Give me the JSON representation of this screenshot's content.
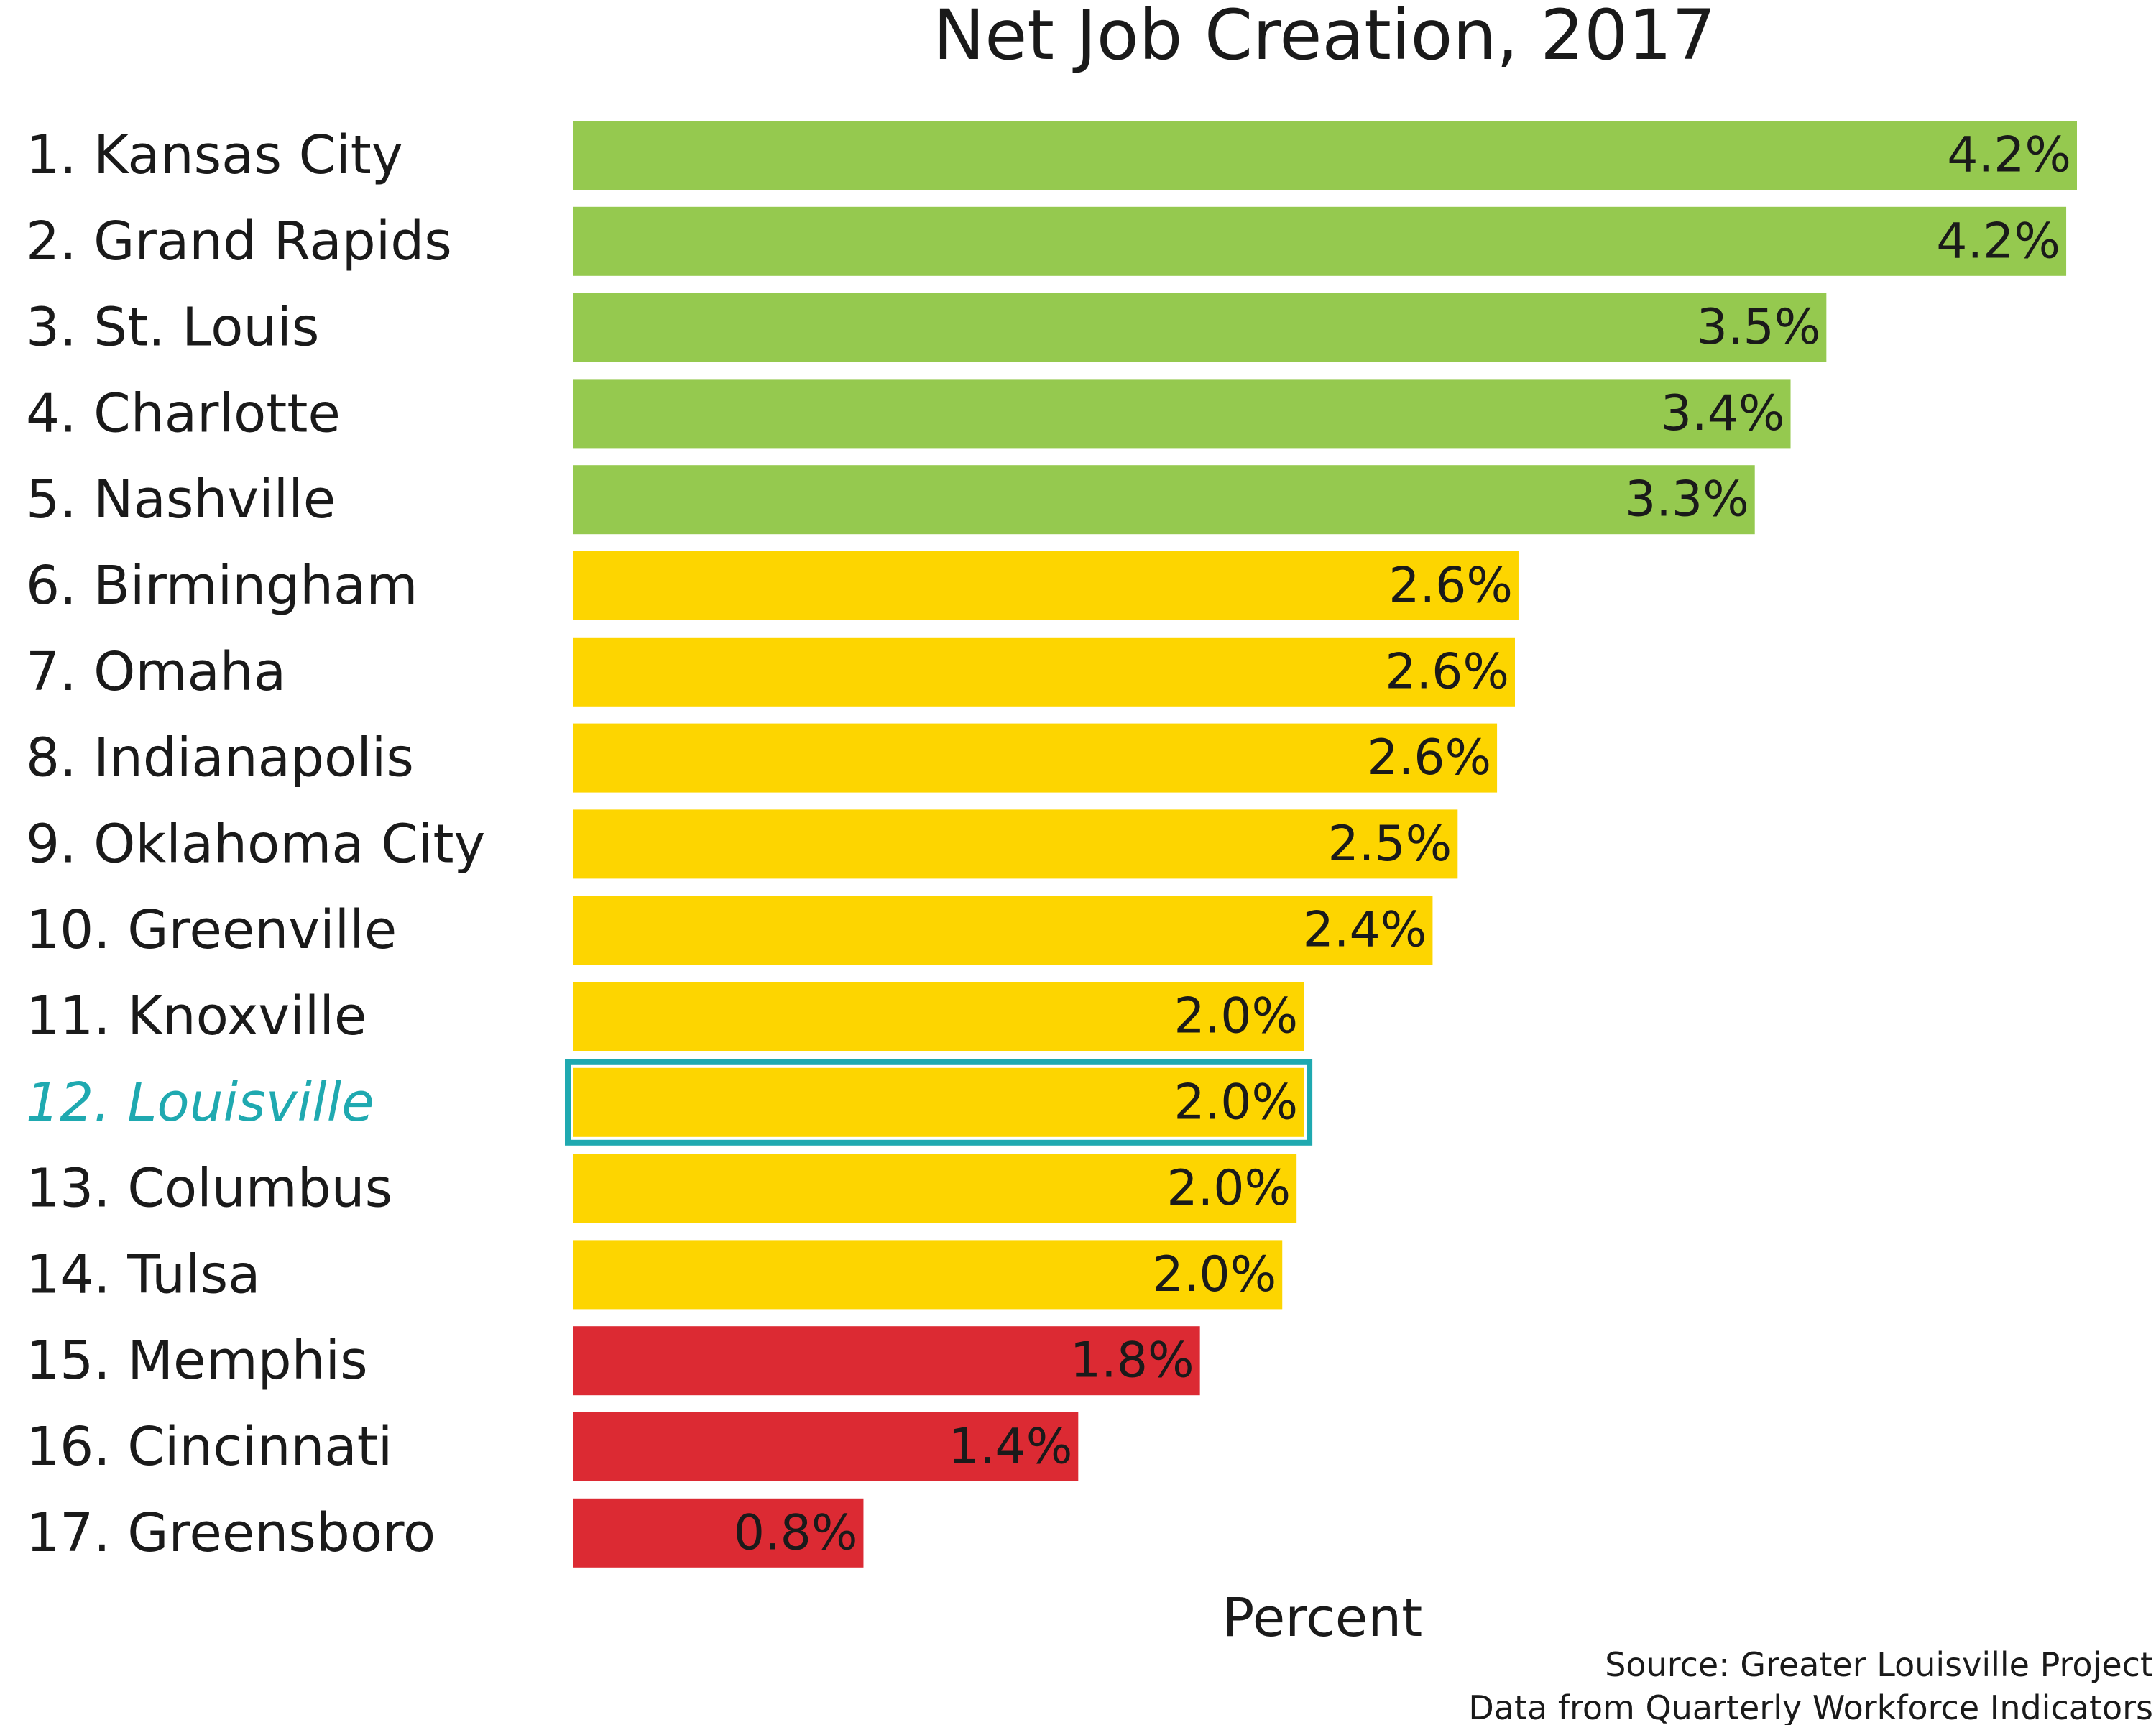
{
  "chart_data": {
    "type": "bar",
    "orientation": "horizontal",
    "title": "Net Job Creation, 2017",
    "xlabel": "Percent",
    "ylabel": "",
    "xlim": [
      0,
      4.2
    ],
    "grid": false,
    "legend": "none",
    "highlight_index": 11,
    "categories": [
      "1. Kansas City",
      "2. Grand Rapids",
      "3. St. Louis",
      "4. Charlotte",
      "5. Nashville",
      "6. Birmingham",
      "7. Omaha",
      "8. Indianapolis",
      "9. Oklahoma City",
      "10. Greenville",
      "11. Knoxville",
      "12. Louisville",
      "13. Columbus",
      "14. Tulsa",
      "15. Memphis",
      "16. Cincinnati",
      "17. Greensboro"
    ],
    "values": [
      4.2,
      4.17,
      3.5,
      3.4,
      3.3,
      2.64,
      2.63,
      2.58,
      2.47,
      2.4,
      2.04,
      2.04,
      2.02,
      1.98,
      1.75,
      1.41,
      0.81
    ],
    "value_labels": [
      "4.2%",
      "4.2%",
      "3.5%",
      "3.4%",
      "3.3%",
      "2.6%",
      "2.6%",
      "2.6%",
      "2.5%",
      "2.4%",
      "2.0%",
      "2.0%",
      "2.0%",
      "2.0%",
      "1.8%",
      "1.4%",
      "0.8%"
    ],
    "tiers": [
      "top",
      "top",
      "top",
      "top",
      "top",
      "mid",
      "mid",
      "mid",
      "mid",
      "mid",
      "mid",
      "mid",
      "mid",
      "mid",
      "low",
      "low",
      "low"
    ],
    "colors": {
      "top": "#95c94f",
      "mid": "#fdd500",
      "low": "#dc2a33",
      "highlight": "#1fa9b0"
    }
  },
  "notes": {
    "source": "Source: Greater Louisville Project",
    "data_from": "Data from Quarterly Workforce Indicators"
  }
}
